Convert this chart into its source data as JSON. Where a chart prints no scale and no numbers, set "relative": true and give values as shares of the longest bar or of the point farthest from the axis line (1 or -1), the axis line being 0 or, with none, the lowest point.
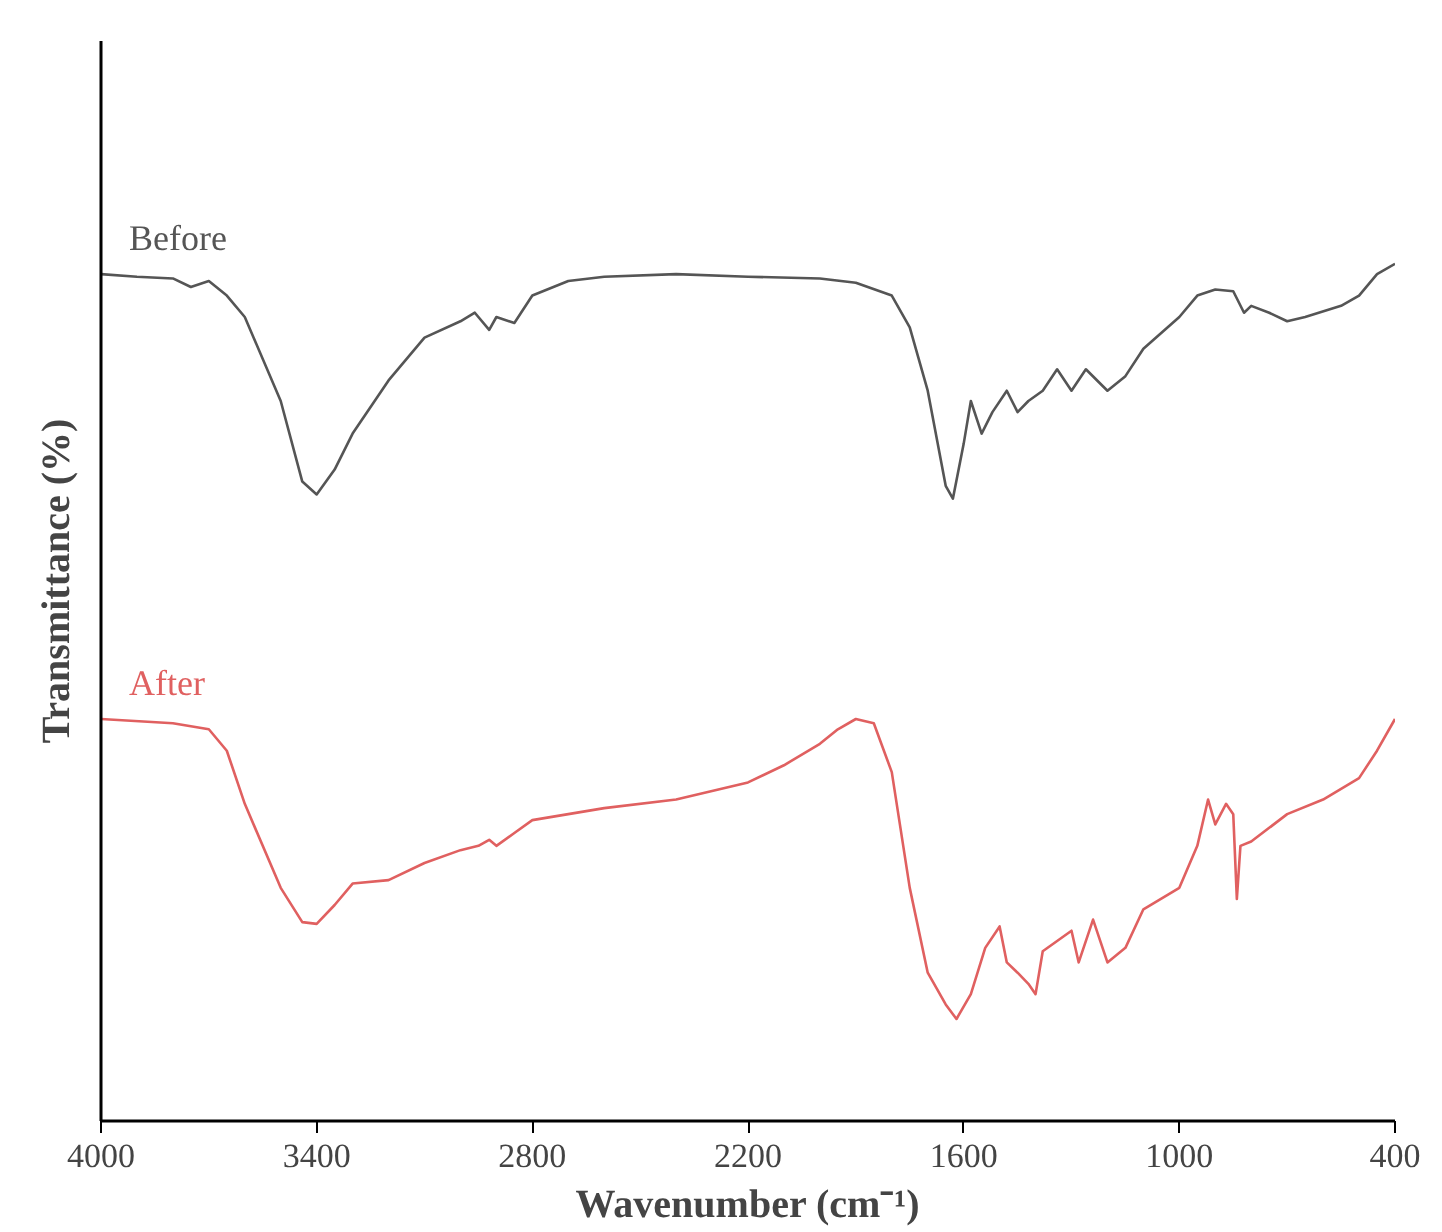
{
  "chart_data": {
    "type": "line",
    "relative": true,
    "xlabel": "Wavenumber (cm⁻¹)",
    "ylabel": "Transmittance (%)",
    "xlim": [
      4000,
      400
    ],
    "xticks": [
      4000,
      3400,
      2800,
      2200,
      1600,
      1000,
      400
    ],
    "grid": false,
    "legend": false,
    "marker": "none",
    "line_style": "solid",
    "tick_labels": "x",
    "series": [
      {
        "name": "Before",
        "color": "#555555",
        "x": [
          4000,
          3900,
          3800,
          3750,
          3700,
          3650,
          3600,
          3500,
          3440,
          3400,
          3350,
          3300,
          3200,
          3100,
          3000,
          2960,
          2920,
          2900,
          2850,
          2800,
          2700,
          2600,
          2400,
          2200,
          2000,
          1900,
          1800,
          1750,
          1700,
          1650,
          1630,
          1600,
          1580,
          1550,
          1520,
          1480,
          1450,
          1420,
          1380,
          1340,
          1300,
          1260,
          1200,
          1150,
          1100,
          1000,
          950,
          900,
          850,
          820,
          800,
          750,
          700,
          650,
          550,
          500,
          450,
          400
        ],
        "values": [
          0.988,
          0.985,
          0.983,
          0.973,
          0.98,
          0.963,
          0.938,
          0.84,
          0.746,
          0.731,
          0.76,
          0.802,
          0.864,
          0.914,
          0.933,
          0.943,
          0.923,
          0.938,
          0.931,
          0.963,
          0.98,
          0.985,
          0.988,
          0.985,
          0.983,
          0.978,
          0.963,
          0.926,
          0.852,
          0.741,
          0.726,
          0.79,
          0.84,
          0.802,
          0.827,
          0.852,
          0.827,
          0.84,
          0.852,
          0.877,
          0.852,
          0.877,
          0.852,
          0.869,
          0.901,
          0.938,
          0.963,
          0.97,
          0.968,
          0.943,
          0.951,
          0.943,
          0.933,
          0.938,
          0.951,
          0.963,
          0.988,
          1.0
        ]
      },
      {
        "name": "After",
        "color": "#e06060",
        "x": [
          4000,
          3800,
          3700,
          3650,
          3600,
          3500,
          3440,
          3400,
          3350,
          3300,
          3200,
          3100,
          3000,
          2950,
          2920,
          2900,
          2850,
          2800,
          2600,
          2400,
          2200,
          2100,
          2000,
          1950,
          1900,
          1850,
          1800,
          1750,
          1700,
          1650,
          1620,
          1580,
          1540,
          1500,
          1480,
          1450,
          1420,
          1400,
          1380,
          1340,
          1300,
          1280,
          1240,
          1200,
          1150,
          1100,
          1000,
          950,
          920,
          900,
          870,
          850,
          840,
          830,
          800,
          700,
          600,
          500,
          450,
          400
        ],
        "values": [
          0.469,
          0.464,
          0.457,
          0.432,
          0.37,
          0.272,
          0.232,
          0.23,
          0.252,
          0.277,
          0.281,
          0.301,
          0.316,
          0.321,
          0.328,
          0.321,
          0.336,
          0.351,
          0.365,
          0.375,
          0.395,
          0.415,
          0.44,
          0.457,
          0.469,
          0.464,
          0.407,
          0.272,
          0.173,
          0.136,
          0.119,
          0.148,
          0.202,
          0.227,
          0.185,
          0.173,
          0.16,
          0.148,
          0.198,
          0.21,
          0.222,
          0.185,
          0.235,
          0.185,
          0.202,
          0.247,
          0.272,
          0.321,
          0.375,
          0.346,
          0.37,
          0.358,
          0.259,
          0.321,
          0.326,
          0.358,
          0.375,
          0.4,
          0.432,
          0.469
        ]
      }
    ]
  }
}
